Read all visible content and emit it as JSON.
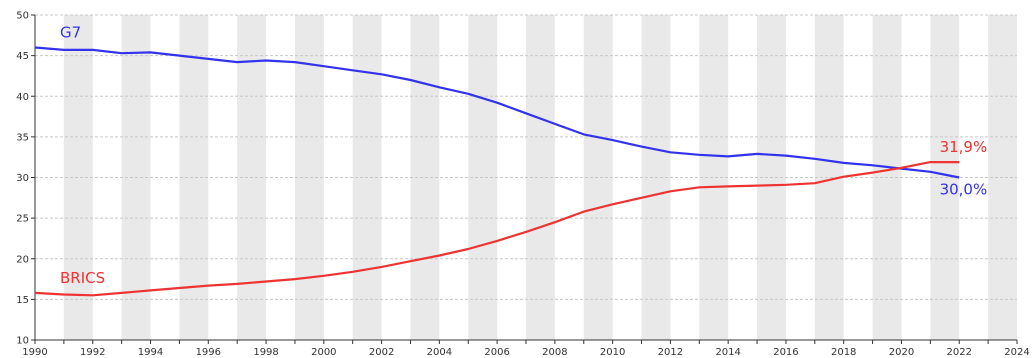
{
  "chart_data": {
    "type": "line",
    "xlim": [
      1990,
      2024
    ],
    "ylim": [
      10,
      50
    ],
    "x_ticks": [
      1990,
      1992,
      1994,
      1996,
      1998,
      2000,
      2002,
      2004,
      2006,
      2008,
      2010,
      2012,
      2014,
      2016,
      2018,
      2020,
      2022,
      2024
    ],
    "x_tick_labels": [
      "1990",
      "1992",
      "1994",
      "1996",
      "1998",
      "2000",
      "2002",
      "2004",
      "2006",
      "2008",
      "2010",
      "2012",
      "2014",
      "2016",
      "2018",
      "2020",
      "2022",
      "2024"
    ],
    "y_ticks": [
      10,
      15,
      20,
      25,
      30,
      35,
      40,
      45,
      50
    ],
    "y_tick_labels": [
      "10",
      "15",
      "20",
      "25",
      "30",
      "35",
      "40",
      "45",
      "50"
    ],
    "grid": true,
    "alternating_year_bands": true,
    "x": [
      1990,
      1991,
      1992,
      1993,
      1994,
      1995,
      1996,
      1997,
      1998,
      1999,
      2000,
      2001,
      2002,
      2003,
      2004,
      2005,
      2006,
      2007,
      2008,
      2009,
      2010,
      2011,
      2012,
      2013,
      2014,
      2015,
      2016,
      2017,
      2018,
      2019,
      2020,
      2021,
      2022
    ],
    "series": [
      {
        "name": "G7",
        "color": "#3333ee",
        "values": [
          46.0,
          45.7,
          45.7,
          45.3,
          45.4,
          45.0,
          44.6,
          44.2,
          44.4,
          44.2,
          43.7,
          43.2,
          42.7,
          42.0,
          41.1,
          40.3,
          39.2,
          37.9,
          36.6,
          35.3,
          34.6,
          33.8,
          33.1,
          32.8,
          32.6,
          32.9,
          32.7,
          32.3,
          31.8,
          31.5,
          31.1,
          30.7,
          30.0
        ],
        "end_label": "30,0%"
      },
      {
        "name": "BRICS",
        "color": "#ee3333",
        "values": [
          15.8,
          15.6,
          15.5,
          15.8,
          16.1,
          16.4,
          16.7,
          16.9,
          17.2,
          17.5,
          17.9,
          18.4,
          19.0,
          19.7,
          20.4,
          21.2,
          22.2,
          23.3,
          24.5,
          25.8,
          26.7,
          27.5,
          28.3,
          28.8,
          28.9,
          29.0,
          29.1,
          29.3,
          30.1,
          30.6,
          31.2,
          31.9,
          31.9
        ],
        "end_label": "31,9%"
      }
    ]
  }
}
